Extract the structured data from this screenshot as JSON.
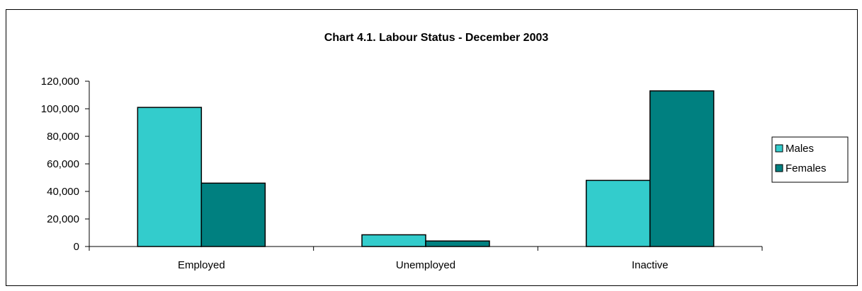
{
  "chart_data": {
    "type": "bar",
    "title": "Chart 4.1.   Labour Status - December 2003",
    "categories": [
      "Employed",
      "Unemployed",
      "Inactive"
    ],
    "series": [
      {
        "name": "Males",
        "color": "#33cccc",
        "values": [
          101000,
          8500,
          48000
        ]
      },
      {
        "name": "Females",
        "color": "#008080",
        "values": [
          46000,
          4000,
          113000
        ]
      }
    ],
    "ylim": [
      0,
      120000
    ],
    "yticks": [
      0,
      20000,
      40000,
      60000,
      80000,
      100000,
      120000
    ],
    "ytick_labels": [
      "0",
      "20,000",
      "40,000",
      "60,000",
      "80,000",
      "100,000",
      "120,000"
    ],
    "grid": false,
    "legend_position": "right"
  }
}
